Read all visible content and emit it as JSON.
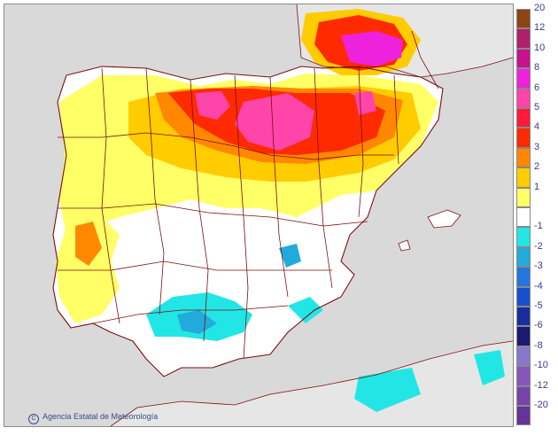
{
  "credit": {
    "agency": "Agencia Estatal de Meteorología",
    "copyright_glyph": "C"
  },
  "legend": {
    "entries": [
      {
        "label": "20",
        "color": "#8b4513"
      },
      {
        "label": "12",
        "color": "#b0206a"
      },
      {
        "label": "10",
        "color": "#c4138c"
      },
      {
        "label": "8",
        "color": "#ee22dd"
      },
      {
        "label": "6",
        "color": "#ff44aa"
      },
      {
        "label": "5",
        "color": "#ff1a3c"
      },
      {
        "label": "4",
        "color": "#ff2a00"
      },
      {
        "label": "3",
        "color": "#ff8800"
      },
      {
        "label": "2",
        "color": "#ffcc00"
      },
      {
        "label": "1",
        "color": "#ffff66"
      },
      {
        "label": "",
        "color": "#ffffff"
      },
      {
        "label": "-1",
        "color": "#22e6e6"
      },
      {
        "label": "-2",
        "color": "#22aadd"
      },
      {
        "label": "-3",
        "color": "#2277dd"
      },
      {
        "label": "-4",
        "color": "#1a4fcc"
      },
      {
        "label": "-5",
        "color": "#1a2da0"
      },
      {
        "label": "-6",
        "color": "#1a1a70"
      },
      {
        "label": "-8",
        "color": "#8877cc"
      },
      {
        "label": "-10",
        "color": "#8855bb"
      },
      {
        "label": "-12",
        "color": "#7744aa"
      },
      {
        "label": "-20",
        "color": "#663399"
      }
    ]
  },
  "map_colors": {
    "sea": "#d9d9d9",
    "land_outside": "#e8e8e8",
    "boundary": "#7a0f0f"
  }
}
